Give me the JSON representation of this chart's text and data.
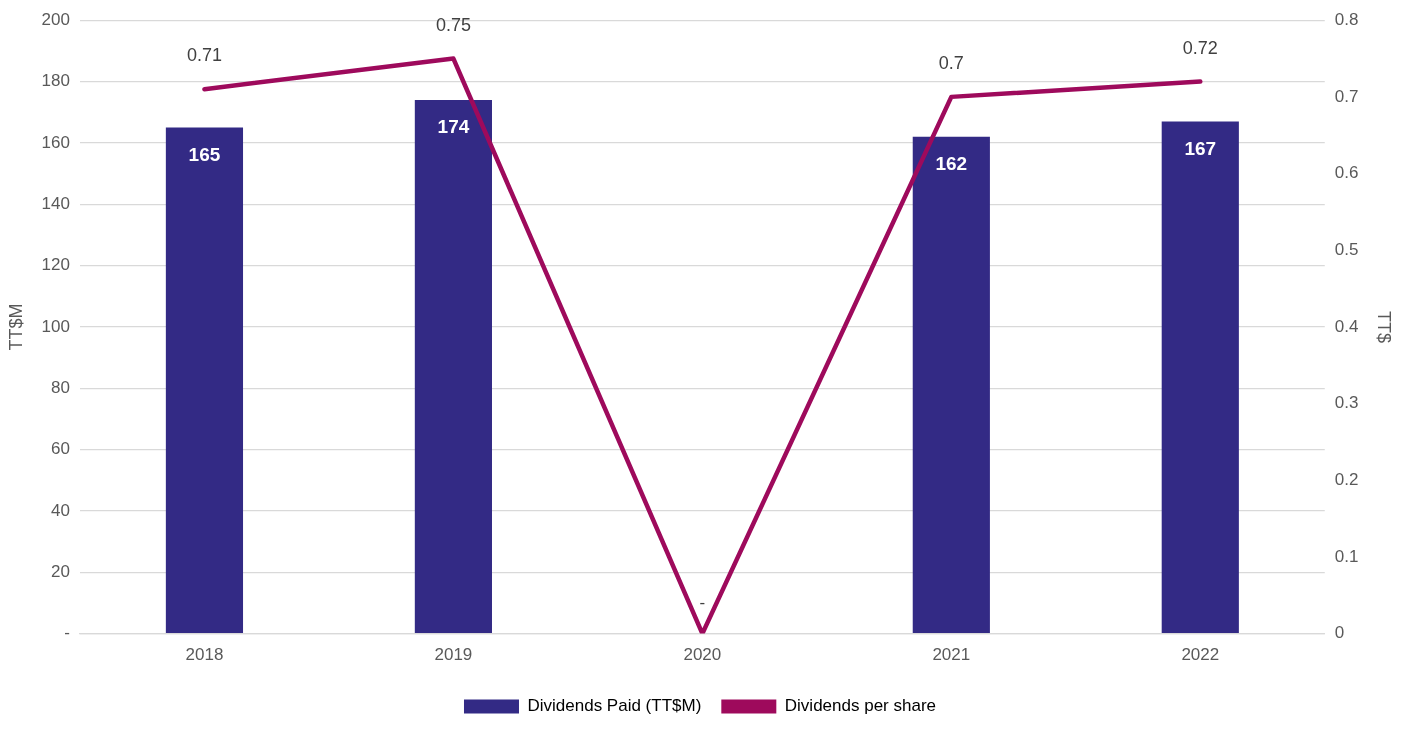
{
  "chart_data": {
    "type": "bar",
    "categories": [
      "2018",
      "2019",
      "2020",
      "2021",
      "2022"
    ],
    "ylabel": "TT$M",
    "y2label": "TT$",
    "ylim": [
      0,
      200
    ],
    "yticks": [
      {
        "value": 0,
        "label": "-"
      },
      20,
      40,
      60,
      80,
      100,
      120,
      140,
      160,
      180,
      200
    ],
    "y2lim": [
      0,
      0.8
    ],
    "y2ticks": [
      0,
      0.1,
      0.2,
      0.3,
      0.4,
      0.5,
      0.6,
      0.7,
      0.8
    ],
    "grid": "y",
    "legend": "bottom",
    "series": [
      {
        "name": "Dividends Paid (TT$M)",
        "color": "#332a85",
        "values": [
          165,
          174,
          0,
          162,
          167
        ],
        "value_labels": [
          "165",
          "174",
          "-",
          "162",
          "167"
        ]
      },
      {
        "name": "Dividends per share",
        "type": "line",
        "axis": "y2",
        "color": "#9e0a5c",
        "marker": "none",
        "values": [
          0.71,
          0.75,
          0,
          0.7,
          0.72
        ],
        "value_labels": [
          "0.71",
          "0.75",
          null,
          "0.7",
          "0.72"
        ]
      }
    ]
  }
}
